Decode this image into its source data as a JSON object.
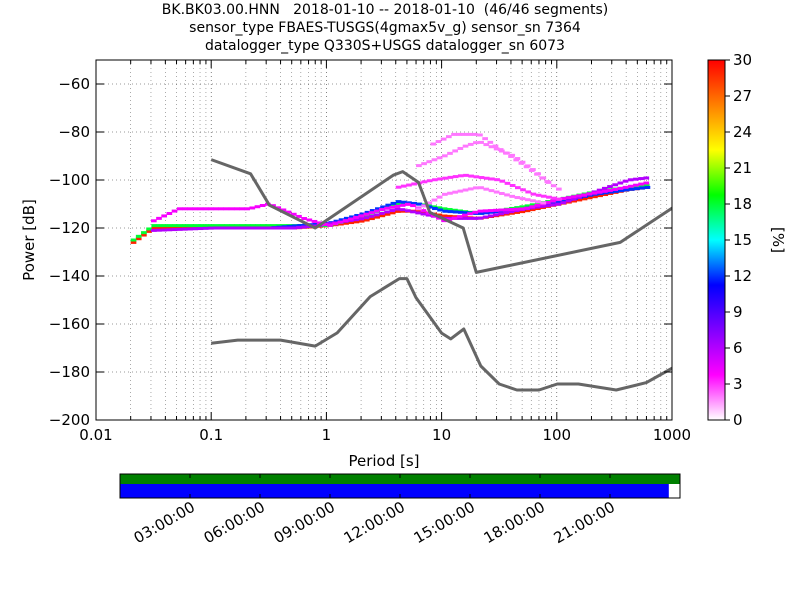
{
  "title_lines": [
    "BK.BK03.00.HNN   2018-01-10 -- 2018-01-10  (46/46 segments)",
    "sensor_type FBAES-TUSGS(4gmax5v_g) sensor_sn 7364",
    "datalogger_type Q330S+USGS datalogger_sn 6073"
  ],
  "chart_data": {
    "type": "heatmap",
    "xlabel": "Period [s]",
    "ylabel": "Power [dB]",
    "x_scale": "log",
    "xlim": [
      0.01,
      1000
    ],
    "ylim": [
      -200,
      -50
    ],
    "x_ticks": [
      "0.01",
      "0.1",
      "1",
      "10",
      "100",
      "1000"
    ],
    "y_ticks": [
      "−200",
      "−180",
      "−160",
      "−140",
      "−120",
      "−100",
      "−80",
      "−60"
    ],
    "grid": true,
    "colorbar": {
      "label": "[%]",
      "range": [
        0,
        30
      ],
      "ticks": [
        "0",
        "3",
        "6",
        "9",
        "12",
        "15",
        "18",
        "21",
        "24",
        "27",
        "30"
      ],
      "colors": [
        "#ffffff",
        "#ff00ff",
        "#8000ff",
        "#0000ff",
        "#00ffff",
        "#00ff00",
        "#ffff00",
        "#ff8000",
        "#ff0000"
      ]
    },
    "noise_models": [
      {
        "model": "high",
        "points": [
          [
            0.1,
            -91.5
          ],
          [
            0.22,
            -97.4
          ],
          [
            0.32,
            -110.5
          ],
          [
            0.8,
            -120
          ],
          [
            3.8,
            -98
          ],
          [
            4.6,
            -96.5
          ],
          [
            6.3,
            -101
          ],
          [
            7.9,
            -113.5
          ],
          [
            15.4,
            -120
          ],
          [
            20,
            -138.5
          ],
          [
            354.8,
            -126
          ],
          [
            10000,
            -80
          ]
        ]
      },
      {
        "model": "low",
        "points": [
          [
            0.1,
            -168
          ],
          [
            0.17,
            -166.7
          ],
          [
            0.4,
            -166.7
          ],
          [
            0.8,
            -169.2
          ],
          [
            1.24,
            -163.7
          ],
          [
            2.4,
            -148.6
          ],
          [
            4.3,
            -141.1
          ],
          [
            5,
            -141.1
          ],
          [
            6,
            -149
          ],
          [
            10,
            -163.8
          ],
          [
            12,
            -166.2
          ],
          [
            15.6,
            -162.1
          ],
          [
            21.9,
            -177.5
          ],
          [
            31.6,
            -185
          ],
          [
            45,
            -187.5
          ],
          [
            70,
            -187.5
          ],
          [
            101,
            -185
          ],
          [
            154,
            -185
          ],
          [
            328,
            -187.5
          ],
          [
            600,
            -184.4
          ],
          [
            10000,
            -151.5
          ]
        ]
      }
    ],
    "psd_curves": [
      {
        "value": 29,
        "points": [
          [
            0.02,
            -126
          ],
          [
            0.03,
            -120
          ],
          [
            0.1,
            -120
          ],
          [
            0.5,
            -120
          ],
          [
            1,
            -119
          ],
          [
            2,
            -117
          ],
          [
            4,
            -113
          ],
          [
            6,
            -113
          ],
          [
            10,
            -115
          ],
          [
            20,
            -116
          ],
          [
            50,
            -113
          ],
          [
            100,
            -110
          ],
          [
            200,
            -107
          ],
          [
            400,
            -104
          ],
          [
            600,
            -103
          ]
        ]
      },
      {
        "value": 18,
        "points": [
          [
            0.02,
            -125
          ],
          [
            0.03,
            -119
          ],
          [
            0.1,
            -119
          ],
          [
            0.5,
            -119
          ],
          [
            1,
            -119
          ],
          [
            2,
            -115
          ],
          [
            4,
            -110
          ],
          [
            6,
            -110
          ],
          [
            10,
            -112
          ],
          [
            20,
            -114
          ],
          [
            50,
            -111
          ],
          [
            100,
            -108
          ],
          [
            200,
            -105
          ],
          [
            400,
            -103
          ],
          [
            600,
            -102
          ]
        ]
      },
      {
        "value": 12,
        "points": [
          [
            0.3,
            -120
          ],
          [
            1,
            -118
          ],
          [
            2,
            -114
          ],
          [
            4,
            -109
          ],
          [
            6,
            -110
          ],
          [
            10,
            -113
          ],
          [
            20,
            -114
          ],
          [
            50,
            -112
          ],
          [
            100,
            -109
          ],
          [
            200,
            -106
          ],
          [
            400,
            -104
          ],
          [
            600,
            -103
          ]
        ]
      },
      {
        "value": 6,
        "points": [
          [
            0.03,
            -121
          ],
          [
            0.1,
            -120
          ],
          [
            0.5,
            -120
          ],
          [
            0.8,
            -119
          ],
          [
            2,
            -116
          ],
          [
            4,
            -112
          ],
          [
            10,
            -116
          ],
          [
            20,
            -116
          ],
          [
            50,
            -112
          ],
          [
            100,
            -110
          ],
          [
            400,
            -100
          ],
          [
            600,
            -99
          ]
        ]
      },
      {
        "value": 4,
        "points": [
          [
            0.03,
            -117
          ],
          [
            0.05,
            -112
          ],
          [
            0.1,
            -112
          ],
          [
            0.2,
            -112
          ],
          [
            0.3,
            -110
          ],
          [
            0.6,
            -116
          ],
          [
            1,
            -119
          ],
          [
            3,
            -112
          ],
          [
            5,
            -110
          ],
          [
            10,
            -117
          ],
          [
            20,
            -113
          ],
          [
            50,
            -112
          ],
          [
            100,
            -108
          ],
          [
            300,
            -104
          ],
          [
            600,
            -101
          ]
        ]
      },
      {
        "value": 3,
        "points": [
          [
            4,
            -103
          ],
          [
            8,
            -100
          ],
          [
            15,
            -98
          ],
          [
            30,
            -100
          ],
          [
            60,
            -106
          ],
          [
            100,
            -108
          ]
        ]
      },
      {
        "value": 2,
        "points": [
          [
            6,
            -94
          ],
          [
            10,
            -90
          ],
          [
            15,
            -86
          ],
          [
            20,
            -84
          ],
          [
            40,
            -90
          ],
          [
            60,
            -96
          ],
          [
            80,
            -101
          ],
          [
            100,
            -104
          ]
        ]
      },
      {
        "value": 2,
        "points": [
          [
            8,
            -85
          ],
          [
            12,
            -81
          ],
          [
            20,
            -81
          ],
          [
            30,
            -87
          ],
          [
            50,
            -94
          ],
          [
            80,
            -101
          ]
        ]
      },
      {
        "value": 2,
        "points": [
          [
            6,
            -112
          ],
          [
            10,
            -106
          ],
          [
            20,
            -103
          ],
          [
            40,
            -107
          ],
          [
            80,
            -110
          ]
        ]
      }
    ]
  },
  "timeline": {
    "tick_labels": [
      "03:00:00",
      "06:00:00",
      "09:00:00",
      "12:00:00",
      "15:00:00",
      "18:00:00",
      "21:00:00"
    ],
    "coverage_fraction": 0.98,
    "top_color": "#008000",
    "bottom_color": "#0000ff"
  }
}
